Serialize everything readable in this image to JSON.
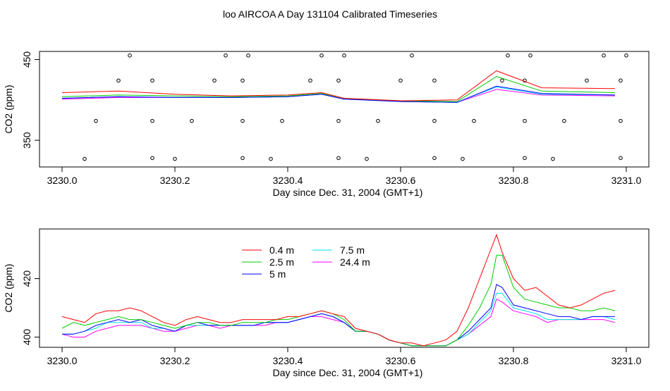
{
  "figure_title": "loo AIRCOA A  Day 131104  Calibrated Timeseries",
  "series_colors": {
    "0.4 m": "#ff0000",
    "2.5 m": "#00cc00",
    "5 m": "#0000ff",
    "7.5 m": "#00e5e5",
    "24.4 m": "#ff00ff"
  },
  "chart_data": [
    {
      "type": "line",
      "title": "",
      "xlabel": "Day since Dec. 31, 2004 (GMT+1)",
      "ylabel": "CO2 (ppm)",
      "xlim": [
        3229.96,
        3231.04
      ],
      "ylim": [
        317,
        460
      ],
      "xticks": [
        3230.0,
        3230.2,
        3230.4,
        3230.6,
        3230.8,
        3231.0
      ],
      "xtick_labels": [
        "3230.0",
        "3230.2",
        "3230.4",
        "3230.6",
        "3230.8",
        "3231.0"
      ],
      "yticks": [
        350,
        450
      ],
      "ytick_labels": [
        "350",
        "450"
      ],
      "grid": false,
      "legend": "none",
      "x": [
        3230.0,
        3230.1,
        3230.2,
        3230.3,
        3230.4,
        3230.46,
        3230.5,
        3230.6,
        3230.7,
        3230.77,
        3230.85,
        3230.98
      ],
      "series": [
        {
          "name": "0.4 m",
          "values": [
            409,
            411,
            407,
            405,
            406,
            409,
            402,
            399,
            400,
            436,
            415,
            414
          ]
        },
        {
          "name": "2.5 m",
          "values": [
            404,
            406,
            405,
            404,
            405,
            408,
            402,
            399,
            398,
            429,
            411,
            409
          ]
        },
        {
          "name": "5 m",
          "values": [
            402,
            404,
            403,
            403,
            404,
            407,
            401,
            398,
            397,
            417,
            408,
            406
          ]
        },
        {
          "name": "7.5 m",
          "values": [
            402,
            404,
            403,
            403,
            404,
            407,
            401,
            398,
            397,
            416,
            407,
            406
          ]
        },
        {
          "name": "24.4 m",
          "values": [
            401,
            403,
            403,
            403,
            404,
            407,
            401,
            398,
            397,
            413,
            406,
            405
          ]
        }
      ],
      "markers": {
        "x": [
          3230.04,
          3230.06,
          3230.1,
          3230.12,
          3230.16,
          3230.16,
          3230.16,
          3230.2,
          3230.23,
          3230.27,
          3230.29,
          3230.32,
          3230.32,
          3230.32,
          3230.33,
          3230.37,
          3230.39,
          3230.44,
          3230.46,
          3230.49,
          3230.49,
          3230.49,
          3230.5,
          3230.54,
          3230.56,
          3230.6,
          3230.62,
          3230.66,
          3230.66,
          3230.66,
          3230.71,
          3230.73,
          3230.78,
          3230.79,
          3230.82,
          3230.82,
          3230.82,
          3230.83,
          3230.87,
          3230.89,
          3230.93,
          3230.96,
          3230.99,
          3230.99,
          3230.99,
          3231.0
        ],
        "y": [
          327,
          374,
          424,
          455,
          328,
          374,
          424,
          327,
          374,
          424,
          455,
          328,
          374,
          424,
          455,
          327,
          374,
          424,
          455,
          328,
          374,
          424,
          455,
          327,
          374,
          424,
          455,
          328,
          374,
          424,
          327,
          374,
          424,
          455,
          328,
          374,
          424,
          455,
          327,
          374,
          424,
          455,
          328,
          374,
          424,
          455
        ]
      }
    },
    {
      "type": "line",
      "title": "",
      "xlabel": "Day since Dec. 31, 2004 (GMT+1)",
      "ylabel": "CO2 (ppm)",
      "xlim": [
        3229.96,
        3231.04
      ],
      "ylim": [
        396.5,
        437
      ],
      "xticks": [
        3230.0,
        3230.2,
        3230.4,
        3230.6,
        3230.8,
        3231.0
      ],
      "xtick_labels": [
        "3230.0",
        "3230.2",
        "3230.4",
        "3230.6",
        "3230.8",
        "3231.0"
      ],
      "yticks": [
        400,
        420
      ],
      "ytick_labels": [
        "400",
        "420"
      ],
      "grid": false,
      "legend": "top-left",
      "legend_entries": [
        "0.4 m",
        "2.5 m",
        "5 m",
        "7.5 m",
        "24.4 m"
      ],
      "x": [
        3230.0,
        3230.02,
        3230.04,
        3230.06,
        3230.08,
        3230.1,
        3230.12,
        3230.14,
        3230.16,
        3230.18,
        3230.2,
        3230.22,
        3230.24,
        3230.26,
        3230.28,
        3230.3,
        3230.32,
        3230.34,
        3230.36,
        3230.38,
        3230.4,
        3230.42,
        3230.44,
        3230.46,
        3230.48,
        3230.5,
        3230.52,
        3230.54,
        3230.56,
        3230.58,
        3230.6,
        3230.62,
        3230.64,
        3230.66,
        3230.68,
        3230.7,
        3230.72,
        3230.74,
        3230.76,
        3230.77,
        3230.78,
        3230.8,
        3230.82,
        3230.84,
        3230.86,
        3230.88,
        3230.9,
        3230.92,
        3230.94,
        3230.96,
        3230.98
      ],
      "series": [
        {
          "name": "0.4 m",
          "values": [
            407,
            406,
            405,
            408,
            409,
            409,
            410,
            409,
            407,
            405,
            404,
            406,
            407,
            406,
            405,
            405,
            406,
            406,
            406,
            406,
            407,
            407,
            408,
            409,
            408,
            407,
            403,
            402,
            401,
            399,
            398,
            398,
            397,
            398,
            399,
            402,
            410,
            420,
            430,
            435,
            429,
            420,
            416,
            417,
            414,
            411,
            410,
            411,
            413,
            415,
            416
          ]
        },
        {
          "name": "2.5 m",
          "values": [
            403,
            405,
            404,
            405,
            406,
            407,
            406,
            406,
            405,
            404,
            403,
            404,
            405,
            405,
            404,
            404,
            405,
            405,
            405,
            406,
            406,
            407,
            408,
            409,
            408,
            406,
            402,
            402,
            401,
            399,
            398,
            397,
            397,
            397,
            397,
            399,
            404,
            410,
            418,
            428,
            428,
            417,
            413,
            412,
            411,
            410,
            410,
            409,
            409,
            410,
            409
          ]
        },
        {
          "name": "5 m",
          "values": [
            401,
            401,
            402,
            404,
            405,
            406,
            405,
            406,
            404,
            403,
            402,
            404,
            405,
            404,
            404,
            404,
            404,
            404,
            405,
            405,
            405,
            406,
            407,
            408,
            407,
            405,
            402,
            402,
            401,
            399,
            398,
            397,
            397,
            397,
            397,
            399,
            402,
            406,
            410,
            418,
            417,
            411,
            410,
            409,
            408,
            407,
            407,
            406,
            407,
            407,
            407
          ]
        },
        {
          "name": "7.5 m",
          "values": [
            401,
            401,
            402,
            403,
            405,
            405,
            405,
            405,
            403,
            403,
            402,
            404,
            404,
            404,
            404,
            404,
            404,
            404,
            405,
            405,
            405,
            406,
            407,
            408,
            407,
            405,
            402,
            402,
            401,
            399,
            398,
            397,
            397,
            397,
            397,
            399,
            401,
            405,
            409,
            415,
            415,
            410,
            409,
            408,
            406,
            406,
            406,
            406,
            407,
            407,
            406
          ]
        },
        {
          "name": "24.4 m",
          "values": [
            401,
            400,
            400,
            402,
            403,
            404,
            404,
            404,
            403,
            402,
            402,
            403,
            404,
            404,
            403,
            404,
            404,
            404,
            404,
            405,
            405,
            406,
            407,
            407,
            406,
            405,
            402,
            402,
            401,
            399,
            398,
            397,
            397,
            397,
            397,
            399,
            401,
            404,
            407,
            413,
            412,
            409,
            408,
            407,
            405,
            406,
            406,
            406,
            406,
            406,
            405
          ]
        }
      ]
    }
  ]
}
